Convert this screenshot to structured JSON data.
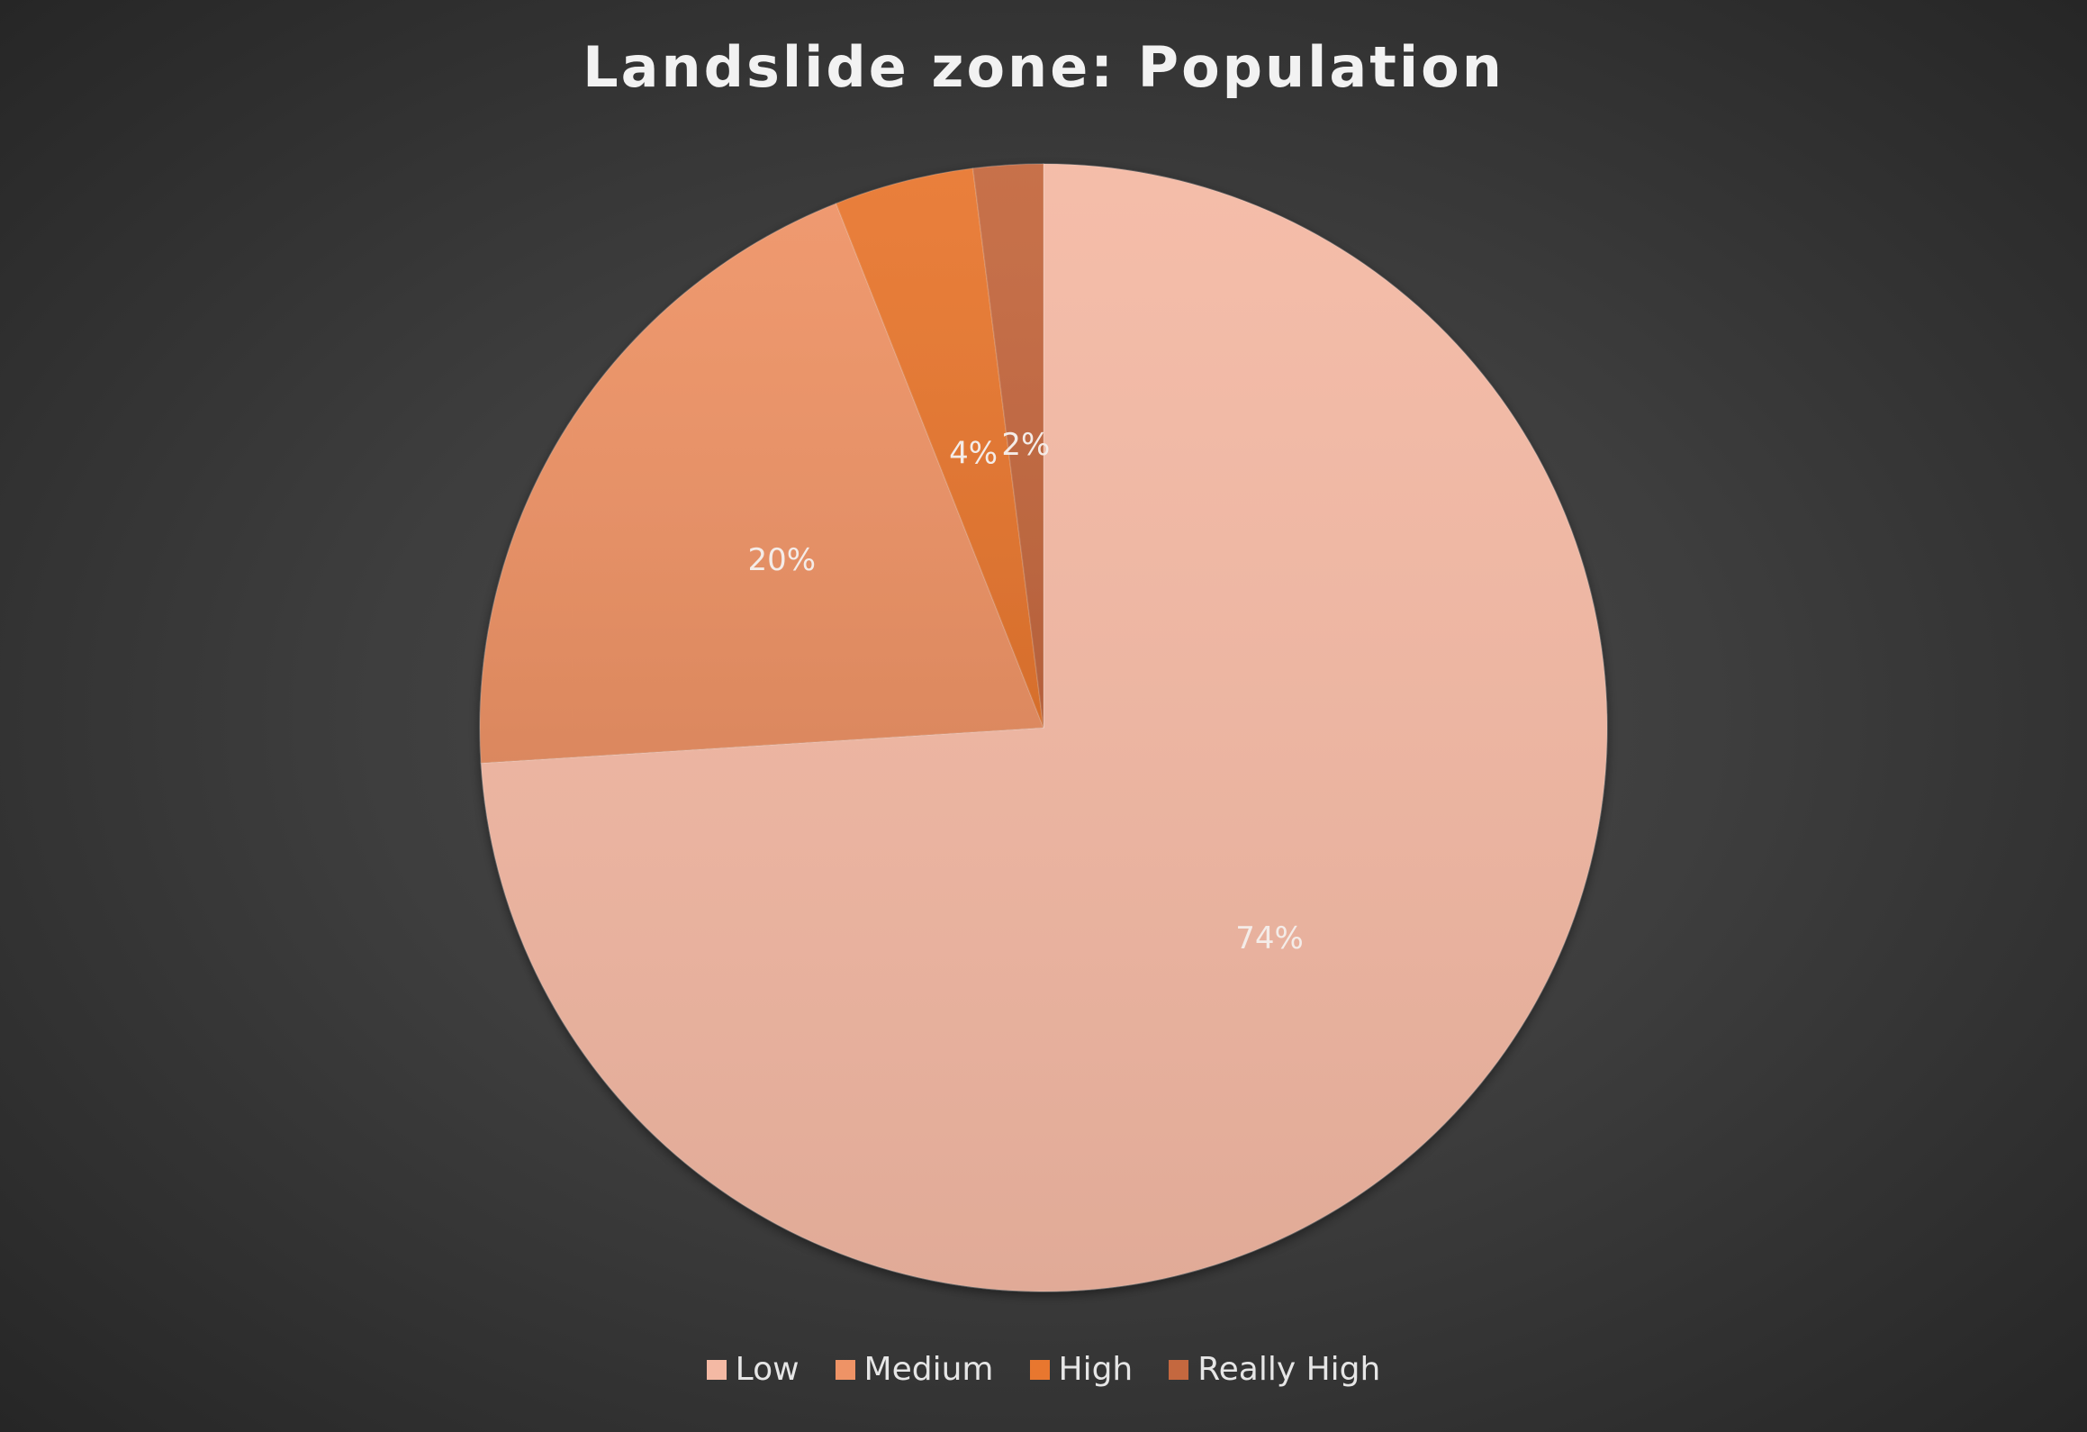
{
  "chart_data": {
    "type": "pie",
    "title": "Landslide zone: Population",
    "categories": [
      "Low",
      "Medium",
      "High",
      "Really High"
    ],
    "values": [
      74,
      20,
      4,
      2
    ],
    "labels": [
      "74%",
      "20%",
      "4%",
      "2%"
    ],
    "colors": [
      "#f4b9a4",
      "#ee9366",
      "#e8772f",
      "#c4683f"
    ],
    "legend_position": "bottom",
    "start_angle": "12 o'clock",
    "direction": "clockwise"
  }
}
